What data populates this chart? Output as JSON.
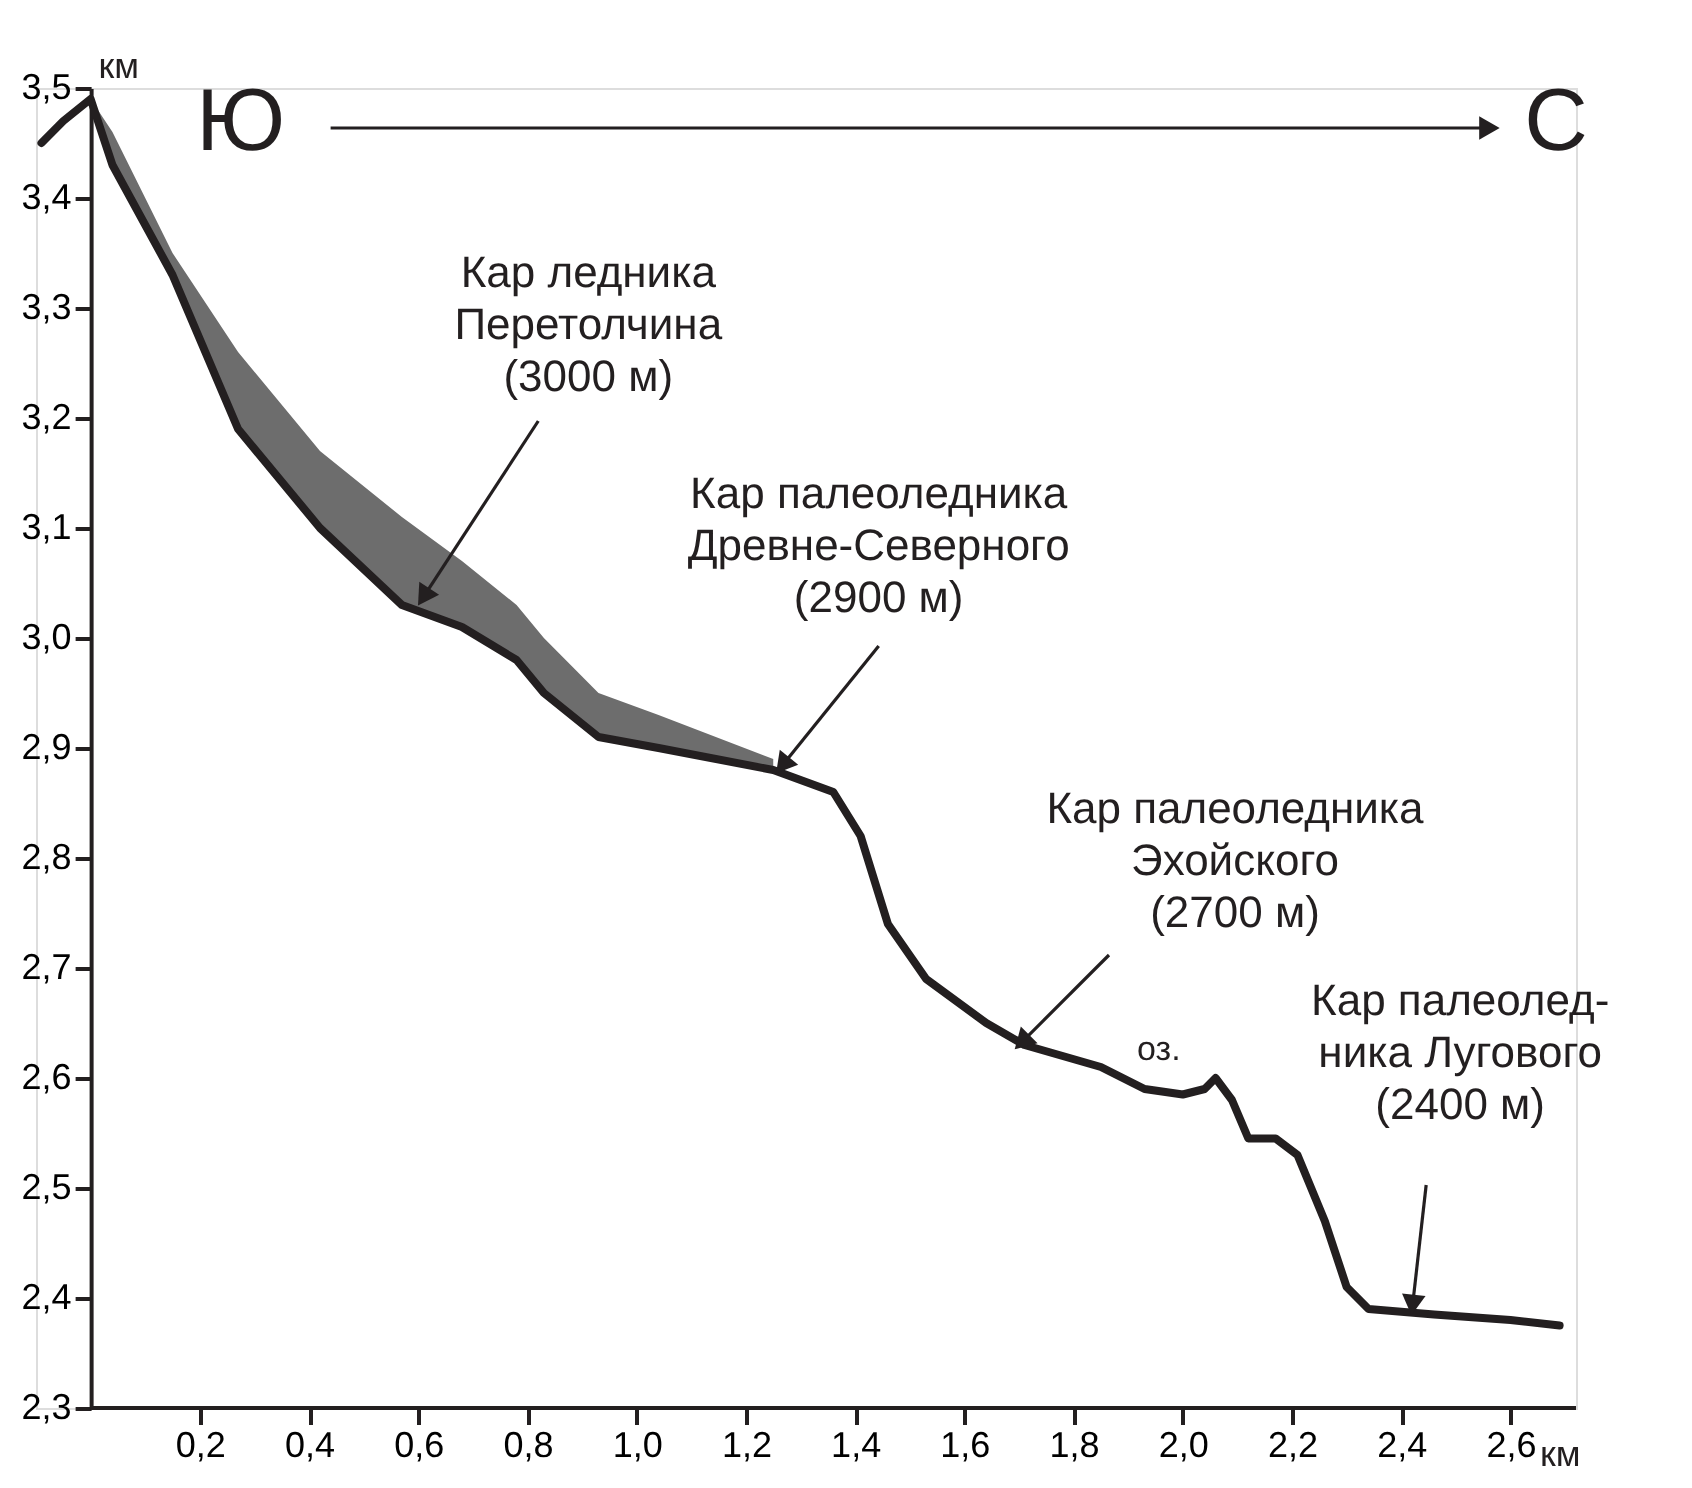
{
  "chart_data": {
    "type": "line",
    "xlabel": "км",
    "ylabel": "км",
    "x": [
      -0.09,
      -0.05,
      0,
      0.04,
      0.15,
      0.27,
      0.42,
      0.57,
      0.68,
      0.78,
      0.83,
      0.93,
      1.04,
      1.25,
      1.36,
      1.41,
      1.46,
      1.53,
      1.64,
      1.71,
      1.85,
      1.93,
      2.0,
      2.04,
      2.06,
      2.09,
      2.12,
      2.17,
      2.21,
      2.26,
      2.3,
      2.34,
      2.46,
      2.6,
      2.69
    ],
    "series": [
      {
        "color": "#231f20",
        "values": [
          3.45,
          3.47,
          3.49,
          3.43,
          3.33,
          3.19,
          3.1,
          3.03,
          3.01,
          2.98,
          2.95,
          2.91,
          2.9,
          2.88,
          2.86,
          2.82,
          2.74,
          2.69,
          2.65,
          2.63,
          2.61,
          2.59,
          2.585,
          2.59,
          2.6,
          2.58,
          2.545,
          2.545,
          2.53,
          2.47,
          2.41,
          2.39,
          2.385,
          2.38,
          2.375
        ],
        "lower": [
          null,
          null,
          3.49,
          3.43,
          3.33,
          3.19,
          3.1,
          3.03,
          3.01,
          2.98,
          2.95,
          2.91,
          2.9,
          2.88,
          null,
          null,
          null,
          null,
          null,
          null,
          null,
          null,
          null,
          null,
          null,
          null,
          null,
          null,
          null,
          null,
          null,
          null,
          null,
          null,
          null
        ],
        "upper": [
          null,
          null,
          3.49,
          3.46,
          3.35,
          3.26,
          3.17,
          3.11,
          3.07,
          3.03,
          3.0,
          2.95,
          2.93,
          2.89,
          null,
          null,
          null,
          null,
          null,
          null,
          null,
          null,
          null,
          null,
          null,
          null,
          null,
          null,
          null,
          null,
          null,
          null,
          null,
          null,
          null
        ]
      }
    ],
    "xlim": [
      -0.1,
      2.72
    ],
    "ylim": [
      2.3,
      3.5
    ],
    "xticks": [
      {
        "value": 0.2,
        "label": "0,2"
      },
      {
        "value": 0.4,
        "label": "0,4"
      },
      {
        "value": 0.6,
        "label": "0,6"
      },
      {
        "value": 0.8,
        "label": "0,8"
      },
      {
        "value": 1.0,
        "label": "1,0"
      },
      {
        "value": 1.2,
        "label": "1,2"
      },
      {
        "value": 1.4,
        "label": "1,4"
      },
      {
        "value": 1.6,
        "label": "1,6"
      },
      {
        "value": 1.8,
        "label": "1,8"
      },
      {
        "value": 2.0,
        "label": "2,0"
      },
      {
        "value": 2.2,
        "label": "2,2"
      },
      {
        "value": 2.4,
        "label": "2,4"
      },
      {
        "value": 2.6,
        "label": "2,6"
      }
    ],
    "yticks": [
      {
        "value": 2.3,
        "label": "2,3"
      },
      {
        "value": 2.4,
        "label": "2,4"
      },
      {
        "value": 2.5,
        "label": "2,5"
      },
      {
        "value": 2.6,
        "label": "2,6"
      },
      {
        "value": 2.7,
        "label": "2,7"
      },
      {
        "value": 2.8,
        "label": "2,8"
      },
      {
        "value": 2.9,
        "label": "2,9"
      },
      {
        "value": 3.0,
        "label": "3,0"
      },
      {
        "value": 3.1,
        "label": "3,1"
      },
      {
        "value": 3.2,
        "label": "3,2"
      },
      {
        "value": 3.3,
        "label": "3,3"
      },
      {
        "value": 3.4,
        "label": "3,4"
      },
      {
        "value": 3.5,
        "label": "3,5"
      }
    ],
    "annotations": [
      "Ю",
      "С",
      {
        "text": "Кар ледника\nПеретолчина\n(3000 м)",
        "x": 0.6,
        "y": 3.03
      },
      {
        "text": "Кар палеоледника\nДревне-Северного\n(2900 м)",
        "x": 1.26,
        "y": 2.88
      },
      {
        "text": "Кар палеоледника\nЭхойского\n(2700 м)",
        "x": 1.7,
        "y": 2.63
      },
      {
        "text": "Кар палеолед-\nника Лугового\n(2400 м)",
        "x": 2.42,
        "y": 2.39
      },
      {
        "text": "оз.",
        "x": 2.0,
        "y": 2.595
      }
    ],
    "grid": false,
    "marker": "none",
    "line_style": "solid"
  }
}
